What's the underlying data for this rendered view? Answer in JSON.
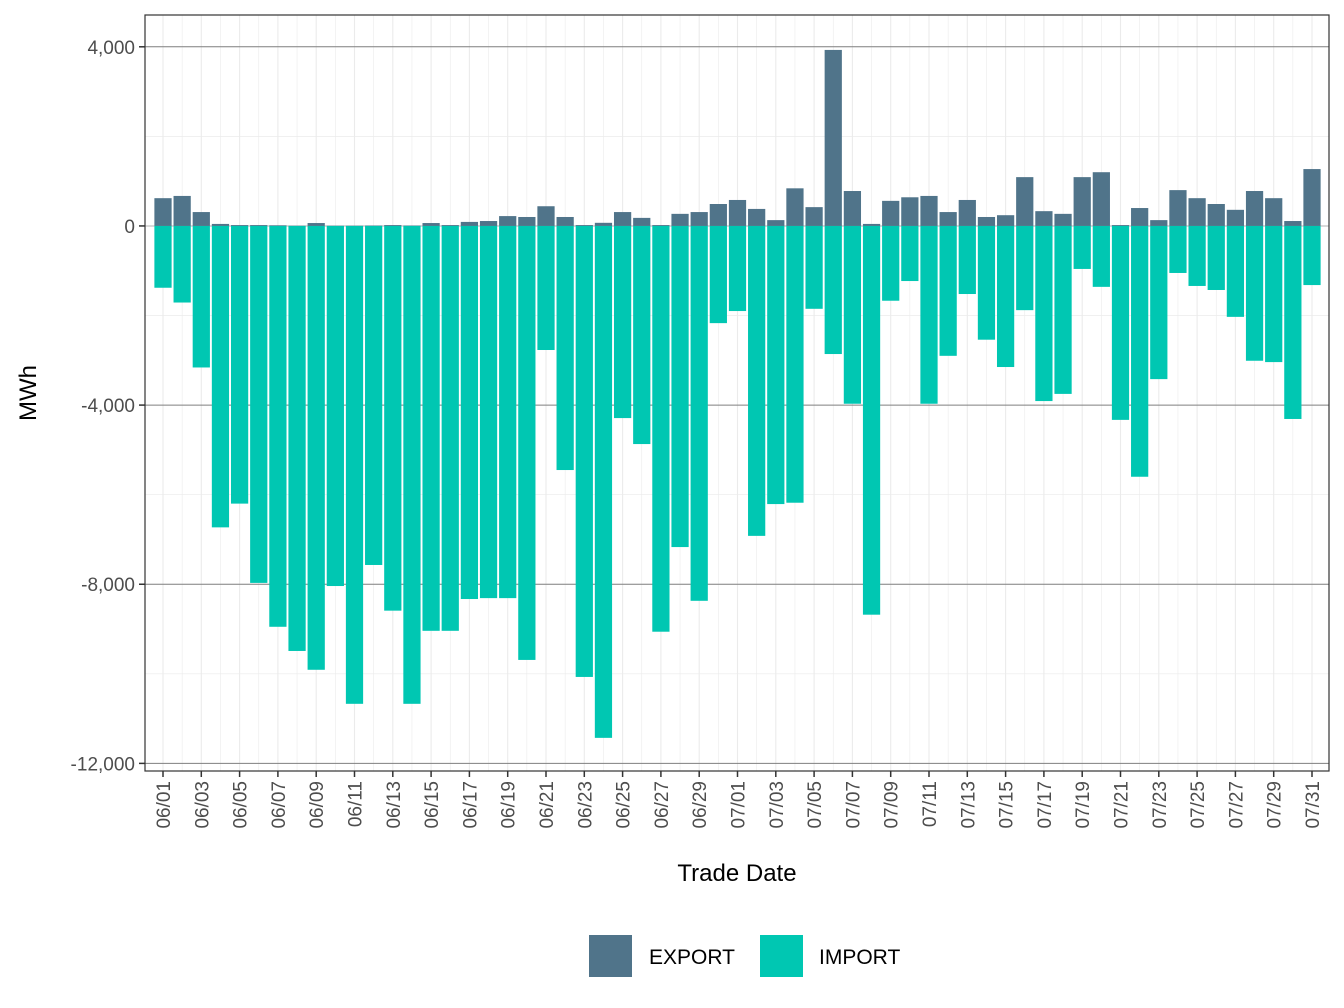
{
  "chart_data": {
    "type": "bar",
    "stacked": true,
    "title": "",
    "xlabel": "Trade Date",
    "ylabel": "MWh",
    "ylim": [
      -12170,
      4710
    ],
    "y_ticks": [
      4000,
      0,
      -4000,
      -8000,
      -12000
    ],
    "y_tick_labels": [
      "4,000",
      "0",
      "-4,000",
      "-8,000",
      "-12,000"
    ],
    "grid": true,
    "legend_position": "bottom",
    "categories": [
      "06/01",
      "06/02",
      "06/03",
      "06/04",
      "06/05",
      "06/06",
      "06/07",
      "06/08",
      "06/09",
      "06/10",
      "06/11",
      "06/12",
      "06/13",
      "06/14",
      "06/15",
      "06/16",
      "06/17",
      "06/18",
      "06/19",
      "06/20",
      "06/21",
      "06/22",
      "06/23",
      "06/24",
      "06/25",
      "06/26",
      "06/27",
      "06/28",
      "06/29",
      "06/30",
      "07/01",
      "07/02",
      "07/03",
      "07/04",
      "07/05",
      "07/06",
      "07/07",
      "07/08",
      "07/09",
      "07/10",
      "07/11",
      "07/12",
      "07/13",
      "07/14",
      "07/15",
      "07/16",
      "07/17",
      "07/18",
      "07/19",
      "07/20",
      "07/21",
      "07/22",
      "07/23",
      "07/24",
      "07/25",
      "07/26",
      "07/27",
      "07/28",
      "07/29",
      "07/30",
      "07/31"
    ],
    "x_tick_labels": [
      "06/01",
      "06/03",
      "06/05",
      "06/07",
      "06/09",
      "06/11",
      "06/13",
      "06/15",
      "06/17",
      "06/19",
      "06/21",
      "06/23",
      "06/25",
      "06/27",
      "06/29",
      "07/01",
      "07/03",
      "07/05",
      "07/07",
      "07/09",
      "07/11",
      "07/13",
      "07/15",
      "07/17",
      "07/19",
      "07/21",
      "07/23",
      "07/25",
      "07/27",
      "07/29",
      "07/31"
    ],
    "series": [
      {
        "name": "EXPORT",
        "color": "#50748A",
        "values": [
          620,
          670,
          310,
          45,
          20,
          20,
          15,
          5,
          65,
          5,
          5,
          10,
          20,
          10,
          65,
          20,
          90,
          110,
          220,
          200,
          440,
          200,
          20,
          70,
          310,
          180,
          20,
          270,
          310,
          490,
          580,
          380,
          130,
          840,
          420,
          3930,
          780,
          45,
          560,
          640,
          670,
          310,
          580,
          200,
          240,
          1090,
          330,
          270,
          1090,
          1200,
          20,
          400,
          130,
          800,
          620,
          490,
          360,
          780,
          620,
          110,
          1270
        ]
      },
      {
        "name": "IMPORT",
        "color": "#00C7B2",
        "values": [
          -1380,
          -1710,
          -3160,
          -6730,
          -6200,
          -7970,
          -8950,
          -9490,
          -9910,
          -8040,
          -10670,
          -7570,
          -8590,
          -10670,
          -9040,
          -9040,
          -8330,
          -8310,
          -8310,
          -9690,
          -2770,
          -5450,
          -10070,
          -11430,
          -4290,
          -4870,
          -9060,
          -7170,
          -8370,
          -2170,
          -1900,
          -6920,
          -6210,
          -6180,
          -1850,
          -2860,
          -3970,
          -8680,
          -1670,
          -1230,
          -3970,
          -2900,
          -1520,
          -2540,
          -3150,
          -1880,
          -3910,
          -3750,
          -960,
          -1360,
          -4330,
          -5600,
          -3420,
          -1050,
          -1340,
          -1430,
          -2030,
          -3010,
          -3040,
          -4310,
          -1320
        ]
      }
    ]
  }
}
